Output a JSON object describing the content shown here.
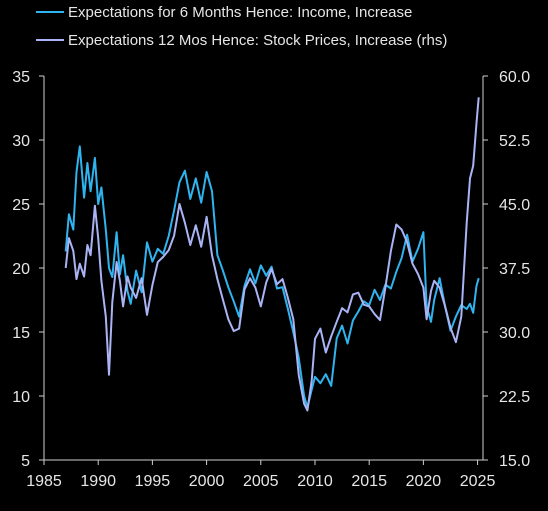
{
  "chart_data": {
    "type": "line",
    "title": "",
    "xlabel": "",
    "ylabel": "",
    "ylabel_right": "",
    "x_range": [
      1985,
      2025.5
    ],
    "x_ticks": [
      1985,
      1990,
      1995,
      2000,
      2005,
      2010,
      2015,
      2020,
      2025
    ],
    "x_tick_labels": [
      "1985",
      "1990",
      "1995",
      "2000",
      "2005",
      "2010",
      "2015",
      "2020",
      "2025"
    ],
    "y_left": {
      "range": [
        5,
        35
      ],
      "ticks": [
        5,
        10,
        15,
        20,
        25,
        30,
        35
      ],
      "tick_labels": [
        "5",
        "10",
        "15",
        "20",
        "25",
        "30",
        "35"
      ]
    },
    "y_right": {
      "range": [
        15,
        60
      ],
      "ticks": [
        15,
        22.5,
        30,
        37.5,
        45,
        52.5,
        60
      ],
      "tick_labels": [
        "15.0",
        "22.5",
        "30.0",
        "37.5",
        "45.0",
        "52.5",
        "60.0"
      ]
    },
    "grid": false,
    "legend_position": "top-left",
    "series": [
      {
        "name": "Expectations for 6 Months Hence: Income, Increase",
        "axis": "left",
        "color": "#2fb4f0",
        "points": [
          [
            1987.0,
            21.3
          ],
          [
            1987.3,
            24.2
          ],
          [
            1987.7,
            23.0
          ],
          [
            1988.0,
            27.5
          ],
          [
            1988.3,
            29.5
          ],
          [
            1988.7,
            25.5
          ],
          [
            1989.0,
            28.2
          ],
          [
            1989.3,
            26.0
          ],
          [
            1989.7,
            28.6
          ],
          [
            1990.0,
            25.0
          ],
          [
            1990.3,
            26.3
          ],
          [
            1990.7,
            23.0
          ],
          [
            1991.0,
            20.0
          ],
          [
            1991.3,
            19.3
          ],
          [
            1991.7,
            22.8
          ],
          [
            1992.0,
            19.5
          ],
          [
            1992.3,
            21.0
          ],
          [
            1992.7,
            18.2
          ],
          [
            1993.0,
            17.2
          ],
          [
            1993.5,
            19.8
          ],
          [
            1994.0,
            18.1
          ],
          [
            1994.5,
            22.0
          ],
          [
            1995.0,
            20.5
          ],
          [
            1995.5,
            21.5
          ],
          [
            1996.0,
            21.1
          ],
          [
            1996.5,
            22.5
          ],
          [
            1997.0,
            24.5
          ],
          [
            1997.5,
            26.7
          ],
          [
            1998.0,
            27.6
          ],
          [
            1998.5,
            25.4
          ],
          [
            1999.0,
            27.0
          ],
          [
            1999.5,
            25.1
          ],
          [
            2000.0,
            27.5
          ],
          [
            2000.5,
            26.0
          ],
          [
            2001.0,
            21.0
          ],
          [
            2001.5,
            19.8
          ],
          [
            2002.0,
            18.5
          ],
          [
            2002.5,
            17.4
          ],
          [
            2003.0,
            16.2
          ],
          [
            2003.5,
            18.6
          ],
          [
            2004.0,
            19.9
          ],
          [
            2004.5,
            18.8
          ],
          [
            2005.0,
            20.2
          ],
          [
            2005.5,
            19.4
          ],
          [
            2006.0,
            20.1
          ],
          [
            2006.5,
            18.4
          ],
          [
            2007.0,
            18.5
          ],
          [
            2007.5,
            16.8
          ],
          [
            2008.0,
            15.0
          ],
          [
            2008.5,
            13.0
          ],
          [
            2009.0,
            10.0
          ],
          [
            2009.3,
            9.1
          ],
          [
            2009.7,
            10.5
          ],
          [
            2010.0,
            11.5
          ],
          [
            2010.5,
            11.0
          ],
          [
            2011.0,
            11.7
          ],
          [
            2011.5,
            10.8
          ],
          [
            2012.0,
            14.5
          ],
          [
            2012.5,
            15.5
          ],
          [
            2013.0,
            14.1
          ],
          [
            2013.5,
            15.9
          ],
          [
            2014.0,
            16.6
          ],
          [
            2014.5,
            17.4
          ],
          [
            2015.0,
            17.1
          ],
          [
            2015.5,
            18.3
          ],
          [
            2016.0,
            17.5
          ],
          [
            2016.5,
            18.7
          ],
          [
            2017.0,
            18.4
          ],
          [
            2017.5,
            19.7
          ],
          [
            2018.0,
            20.8
          ],
          [
            2018.5,
            22.6
          ],
          [
            2019.0,
            20.5
          ],
          [
            2019.5,
            21.5
          ],
          [
            2020.0,
            22.8
          ],
          [
            2020.3,
            17.0
          ],
          [
            2020.7,
            15.8
          ],
          [
            2021.0,
            17.5
          ],
          [
            2021.5,
            19.2
          ],
          [
            2022.0,
            17.0
          ],
          [
            2022.5,
            15.1
          ],
          [
            2023.0,
            16.2
          ],
          [
            2023.5,
            17.1
          ],
          [
            2024.0,
            16.8
          ],
          [
            2024.3,
            17.2
          ],
          [
            2024.6,
            16.5
          ],
          [
            2024.9,
            18.6
          ],
          [
            2025.1,
            19.2
          ]
        ]
      },
      {
        "name": "Expectations 12 Mos Hence: Stock Prices, Increase (rhs)",
        "axis": "right",
        "color": "#aab4f5",
        "points": [
          [
            1987.0,
            37.5
          ],
          [
            1987.3,
            41.0
          ],
          [
            1987.7,
            39.5
          ],
          [
            1988.0,
            36.2
          ],
          [
            1988.3,
            38.0
          ],
          [
            1988.7,
            36.5
          ],
          [
            1989.0,
            40.2
          ],
          [
            1989.3,
            39.0
          ],
          [
            1989.7,
            44.8
          ],
          [
            1990.0,
            41.0
          ],
          [
            1990.3,
            36.0
          ],
          [
            1990.7,
            31.8
          ],
          [
            1991.0,
            25.0
          ],
          [
            1991.3,
            33.5
          ],
          [
            1991.7,
            38.2
          ],
          [
            1992.0,
            36.0
          ],
          [
            1992.3,
            33.0
          ],
          [
            1992.7,
            36.5
          ],
          [
            1993.0,
            35.2
          ],
          [
            1993.5,
            34.0
          ],
          [
            1994.0,
            36.3
          ],
          [
            1994.5,
            32.0
          ],
          [
            1995.0,
            35.5
          ],
          [
            1995.5,
            38.2
          ],
          [
            1996.0,
            38.8
          ],
          [
            1996.5,
            39.6
          ],
          [
            1997.0,
            41.3
          ],
          [
            1997.5,
            45.0
          ],
          [
            1998.0,
            42.8
          ],
          [
            1998.5,
            40.2
          ],
          [
            1999.0,
            42.5
          ],
          [
            1999.5,
            40.0
          ],
          [
            2000.0,
            43.5
          ],
          [
            2000.5,
            39.0
          ],
          [
            2001.0,
            36.2
          ],
          [
            2001.5,
            33.8
          ],
          [
            2002.0,
            31.5
          ],
          [
            2002.5,
            30.1
          ],
          [
            2003.0,
            30.4
          ],
          [
            2003.5,
            35.0
          ],
          [
            2004.0,
            36.3
          ],
          [
            2004.5,
            35.2
          ],
          [
            2005.0,
            33.0
          ],
          [
            2005.5,
            35.8
          ],
          [
            2006.0,
            37.4
          ],
          [
            2006.5,
            35.6
          ],
          [
            2007.0,
            36.2
          ],
          [
            2007.5,
            34.0
          ],
          [
            2008.0,
            31.5
          ],
          [
            2008.5,
            25.0
          ],
          [
            2009.0,
            21.6
          ],
          [
            2009.3,
            20.8
          ],
          [
            2009.7,
            24.3
          ],
          [
            2010.0,
            29.2
          ],
          [
            2010.5,
            30.4
          ],
          [
            2011.0,
            27.6
          ],
          [
            2011.5,
            29.5
          ],
          [
            2012.0,
            31.2
          ],
          [
            2012.5,
            32.8
          ],
          [
            2013.0,
            32.3
          ],
          [
            2013.5,
            34.4
          ],
          [
            2014.0,
            34.6
          ],
          [
            2014.5,
            33.2
          ],
          [
            2015.0,
            33.0
          ],
          [
            2015.5,
            32.1
          ],
          [
            2016.0,
            31.4
          ],
          [
            2016.5,
            35.2
          ],
          [
            2017.0,
            39.5
          ],
          [
            2017.5,
            42.6
          ],
          [
            2018.0,
            42.0
          ],
          [
            2018.5,
            40.5
          ],
          [
            2019.0,
            38.0
          ],
          [
            2019.5,
            36.8
          ],
          [
            2020.0,
            35.2
          ],
          [
            2020.3,
            31.5
          ],
          [
            2020.7,
            34.8
          ],
          [
            2021.0,
            36.0
          ],
          [
            2021.5,
            35.2
          ],
          [
            2022.0,
            33.0
          ],
          [
            2022.5,
            30.5
          ],
          [
            2023.0,
            28.8
          ],
          [
            2023.5,
            31.8
          ],
          [
            2024.0,
            42.8
          ],
          [
            2024.3,
            48.0
          ],
          [
            2024.6,
            49.5
          ],
          [
            2024.9,
            54.5
          ],
          [
            2025.1,
            57.5
          ]
        ]
      }
    ]
  }
}
